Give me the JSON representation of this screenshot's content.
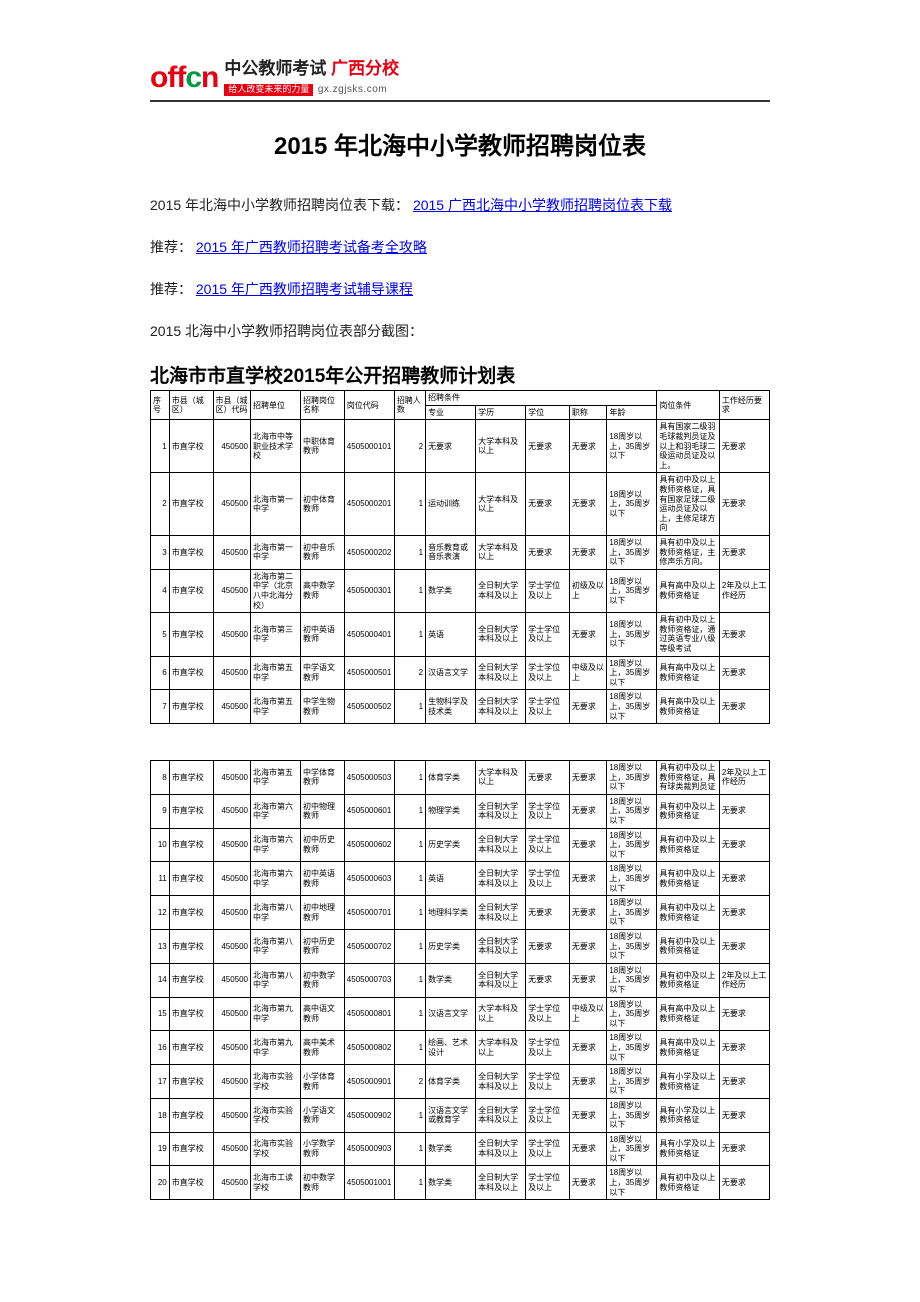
{
  "logo": {
    "brand_cn": "中公教师考试",
    "brand_branch": "广西分校",
    "slogan": "给人改变未来的力量",
    "url": "gx.zgjsks.com"
  },
  "title": "2015 年北海中小学教师招聘岗位表",
  "intro_prefix": "2015 年北海中小学教师招聘岗位表下载：",
  "intro_link": "2015 广西北海中小学教师招聘岗位表下载",
  "rec1_label": "推荐：",
  "rec1_link": "2015 年广西教师招聘考试备考全攻略",
  "rec2_label": "推荐：",
  "rec2_link": "2015 年广西教师招聘考试辅导课程",
  "caption": "2015 北海中小学教师招聘岗位表部分截图：",
  "table_title": "北海市市直学校2015年公开招聘教师计划表",
  "columns_top": {
    "seq": "序号",
    "area": "市县（城区）",
    "area_code": "市县（城区）代码",
    "unit": "招聘单位",
    "pos": "招聘岗位名称",
    "pcode": "岗位代码",
    "cnt": "招聘人数",
    "cond_group": "招聘条件",
    "pos_cond": "岗位条件",
    "exp": "工作经历要求"
  },
  "columns_sub": {
    "major": "专业",
    "edu": "学历",
    "deg": "学位",
    "title": "职称",
    "age": "年龄"
  },
  "rows1": [
    {
      "seq": "1",
      "area": "市直学校",
      "code": "450500",
      "unit": "北海市中等职业技术学校",
      "pos": "中职体育教师",
      "pcode": "4505000101",
      "cnt": "2",
      "major": "无要求",
      "edu": "大学本科及以上",
      "deg": "无要求",
      "title": "无要求",
      "age": "18周岁以上，35周岁以下",
      "cond": "具有国家二级羽毛球裁判员证及以上和羽毛球二级运动员证及以上。",
      "exp": "无要求"
    },
    {
      "seq": "2",
      "area": "市直学校",
      "code": "450500",
      "unit": "北海市第一中学",
      "pos": "初中体育教师",
      "pcode": "4505000201",
      "cnt": "1",
      "major": "运动训练",
      "edu": "大学本科及以上",
      "deg": "无要求",
      "title": "无要求",
      "age": "18周岁以上，35周岁以下",
      "cond": "具有初中及以上教师资格证，具有国家足球二级运动员证及以上，主修足球方向",
      "exp": "无要求"
    },
    {
      "seq": "3",
      "area": "市直学校",
      "code": "450500",
      "unit": "北海市第一中学",
      "pos": "初中音乐教师",
      "pcode": "4505000202",
      "cnt": "1",
      "major": "音乐教育或音乐表演",
      "edu": "大学本科及以上",
      "deg": "无要求",
      "title": "无要求",
      "age": "18周岁以上，35周岁以下",
      "cond": "具有初中及以上教师资格证，主修声乐方向。",
      "exp": "无要求"
    },
    {
      "seq": "4",
      "area": "市直学校",
      "code": "450500",
      "unit": "北海市第二中学（北京八中北海分校）",
      "pos": "高中数学教师",
      "pcode": "4505000301",
      "cnt": "1",
      "major": "数学类",
      "edu": "全日制大学本科及以上",
      "deg": "学士学位及以上",
      "title": "初级及以上",
      "age": "18周岁以上，35周岁以下",
      "cond": "具有高中及以上教师资格证",
      "exp": "2年及以上工作经历"
    },
    {
      "seq": "5",
      "area": "市直学校",
      "code": "450500",
      "unit": "北海市第三中学",
      "pos": "初中英语教师",
      "pcode": "4505000401",
      "cnt": "1",
      "major": "英语",
      "edu": "全日制大学本科及以上",
      "deg": "学士学位及以上",
      "title": "无要求",
      "age": "18周岁以上，35周岁以下",
      "cond": "具有初中及以上教师资格证，通过英语专业八级等级考试",
      "exp": "无要求"
    },
    {
      "seq": "6",
      "area": "市直学校",
      "code": "450500",
      "unit": "北海市第五中学",
      "pos": "中学语文教师",
      "pcode": "4505000501",
      "cnt": "2",
      "major": "汉语言文学",
      "edu": "全日制大学本科及以上",
      "deg": "学士学位及以上",
      "title": "中级及以上",
      "age": "18周岁以上，35周岁以下",
      "cond": "具有高中及以上教师资格证",
      "exp": "无要求"
    },
    {
      "seq": "7",
      "area": "市直学校",
      "code": "450500",
      "unit": "北海市第五中学",
      "pos": "中学生物教师",
      "pcode": "4505000502",
      "cnt": "1",
      "major": "生物科学及技术类",
      "edu": "全日制大学本科及以上",
      "deg": "学士学位及以上",
      "title": "无要求",
      "age": "18周岁以上，35周岁以下",
      "cond": "具有高中及以上教师资格证",
      "exp": "无要求"
    }
  ],
  "rows2": [
    {
      "seq": "8",
      "area": "市直学校",
      "code": "450500",
      "unit": "北海市第五中学",
      "pos": "中学体育教师",
      "pcode": "4505000503",
      "cnt": "1",
      "major": "体育学类",
      "edu": "大学本科及以上",
      "deg": "无要求",
      "title": "无要求",
      "age": "18周岁以上，35周岁以下",
      "cond": "具有初中及以上教师资格证，具有球类裁判员证",
      "exp": "2年及以上工作经历"
    },
    {
      "seq": "9",
      "area": "市直学校",
      "code": "450500",
      "unit": "北海市第六中学",
      "pos": "初中物理教师",
      "pcode": "4505000601",
      "cnt": "1",
      "major": "物理学类",
      "edu": "全日制大学本科及以上",
      "deg": "学士学位及以上",
      "title": "无要求",
      "age": "18周岁以上，35周岁以下",
      "cond": "具有初中及以上教师资格证",
      "exp": "无要求"
    },
    {
      "seq": "10",
      "area": "市直学校",
      "code": "450500",
      "unit": "北海市第六中学",
      "pos": "初中历史教师",
      "pcode": "4505000602",
      "cnt": "1",
      "major": "历史学类",
      "edu": "全日制大学本科及以上",
      "deg": "学士学位及以上",
      "title": "无要求",
      "age": "18周岁以上，35周岁以下",
      "cond": "具有初中及以上教师资格证",
      "exp": "无要求"
    },
    {
      "seq": "11",
      "area": "市直学校",
      "code": "450500",
      "unit": "北海市第六中学",
      "pos": "初中英语教师",
      "pcode": "4505000603",
      "cnt": "1",
      "major": "英语",
      "edu": "全日制大学本科及以上",
      "deg": "学士学位及以上",
      "title": "无要求",
      "age": "18周岁以上，35周岁以下",
      "cond": "具有初中及以上教师资格证",
      "exp": "无要求"
    },
    {
      "seq": "12",
      "area": "市直学校",
      "code": "450500",
      "unit": "北海市第八中学",
      "pos": "初中地理教师",
      "pcode": "4505000701",
      "cnt": "1",
      "major": "地理科学类",
      "edu": "全日制大学本科及以上",
      "deg": "无要求",
      "title": "无要求",
      "age": "18周岁以上，35周岁以下",
      "cond": "具有初中及以上教师资格证",
      "exp": "无要求"
    },
    {
      "seq": "13",
      "area": "市直学校",
      "code": "450500",
      "unit": "北海市第八中学",
      "pos": "初中历史教师",
      "pcode": "4505000702",
      "cnt": "1",
      "major": "历史学类",
      "edu": "全日制大学本科及以上",
      "deg": "无要求",
      "title": "无要求",
      "age": "18周岁以上，35周岁以下",
      "cond": "具有初中及以上教师资格证",
      "exp": "无要求"
    },
    {
      "seq": "14",
      "area": "市直学校",
      "code": "450500",
      "unit": "北海市第八中学",
      "pos": "初中数学教师",
      "pcode": "4505000703",
      "cnt": "1",
      "major": "数学类",
      "edu": "全日制大学本科及以上",
      "deg": "无要求",
      "title": "无要求",
      "age": "18周岁以上，35周岁以下",
      "cond": "具有初中及以上教师资格证",
      "exp": "2年及以上工作经历"
    },
    {
      "seq": "15",
      "area": "市直学校",
      "code": "450500",
      "unit": "北海市第九中学",
      "pos": "高中语文教师",
      "pcode": "4505000801",
      "cnt": "1",
      "major": "汉语言文学",
      "edu": "大学本科及以上",
      "deg": "学士学位及以上",
      "title": "中级及以上",
      "age": "18周岁以上，35周岁以下",
      "cond": "具有高中及以上教师资格证",
      "exp": "无要求"
    },
    {
      "seq": "16",
      "area": "市直学校",
      "code": "450500",
      "unit": "北海市第九中学",
      "pos": "高中美术教师",
      "pcode": "4505000802",
      "cnt": "1",
      "major": "绘画、艺术设计",
      "edu": "大学本科及以上",
      "deg": "学士学位及以上",
      "title": "无要求",
      "age": "18周岁以上，35周岁以下",
      "cond": "具有高中及以上教师资格证",
      "exp": "无要求"
    },
    {
      "seq": "17",
      "area": "市直学校",
      "code": "450500",
      "unit": "北海市实验学校",
      "pos": "小学体育教师",
      "pcode": "4505000901",
      "cnt": "2",
      "major": "体育学类",
      "edu": "全日制大学本科及以上",
      "deg": "学士学位及以上",
      "title": "无要求",
      "age": "18周岁以上，35周岁以下",
      "cond": "具有小学及以上教师资格证",
      "exp": "无要求"
    },
    {
      "seq": "18",
      "area": "市直学校",
      "code": "450500",
      "unit": "北海市实验学校",
      "pos": "小学语文教师",
      "pcode": "4505000902",
      "cnt": "1",
      "major": "汉语言文学或教育学",
      "edu": "全日制大学本科及以上",
      "deg": "学士学位及以上",
      "title": "无要求",
      "age": "18周岁以上，35周岁以下",
      "cond": "具有小学及以上教师资格证",
      "exp": "无要求"
    },
    {
      "seq": "19",
      "area": "市直学校",
      "code": "450500",
      "unit": "北海市实验学校",
      "pos": "小学数学教师",
      "pcode": "4505000903",
      "cnt": "1",
      "major": "数学类",
      "edu": "全日制大学本科及以上",
      "deg": "学士学位及以上",
      "title": "无要求",
      "age": "18周岁以上，35周岁以下",
      "cond": "具有小学及以上教师资格证",
      "exp": "无要求"
    },
    {
      "seq": "20",
      "area": "市直学校",
      "code": "450500",
      "unit": "北海市工读学校",
      "pos": "初中数学教师",
      "pcode": "4505001001",
      "cnt": "1",
      "major": "数学类",
      "edu": "全日制大学本科及以上",
      "deg": "学士学位及以上",
      "title": "无要求",
      "age": "18周岁以上，35周岁以下",
      "cond": "具有初中及以上教师资格证",
      "exp": "无要求"
    }
  ],
  "colors": {
    "link": "#0000ee",
    "brand_red": "#e60012",
    "rule": "#333333",
    "text": "#222222",
    "border": "#000000"
  }
}
